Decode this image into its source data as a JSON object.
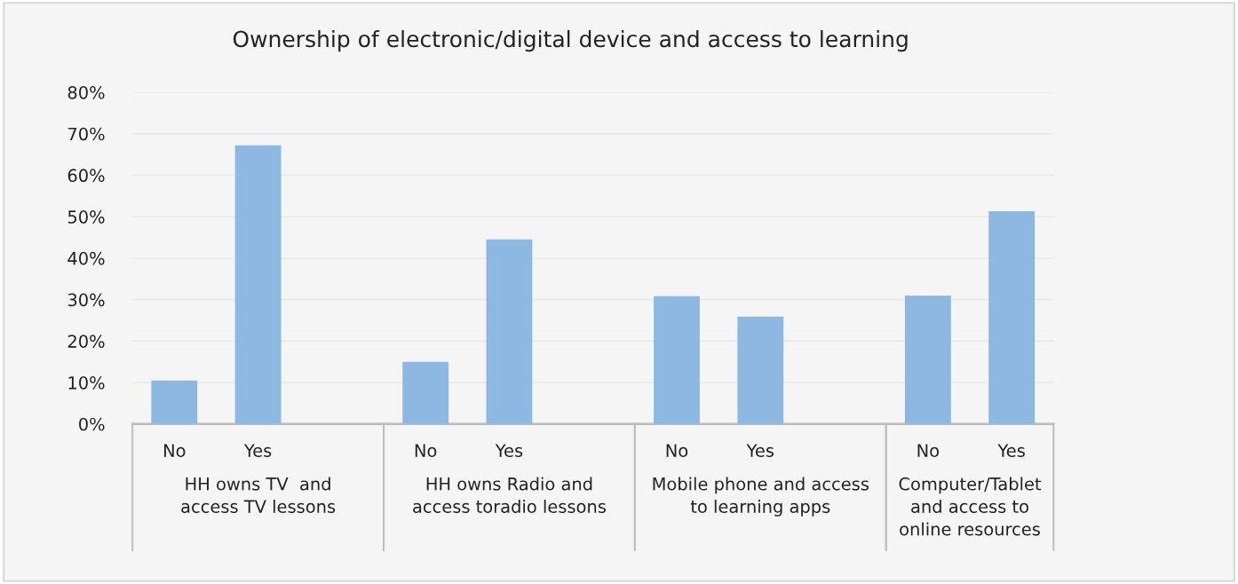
{
  "chart_data": {
    "type": "bar",
    "title": "Ownership of electronic/digital device and access to learning",
    "categories": [
      "No",
      "Yes",
      null,
      "No",
      "Yes",
      null,
      "No",
      "Yes",
      null,
      "No",
      "Yes"
    ],
    "values": [
      10.5,
      67.2,
      null,
      15.0,
      44.5,
      null,
      30.8,
      25.9,
      null,
      31.0,
      51.3
    ],
    "color": "#8db8e2",
    "annotations": [
      "HH owns TV  and\naccess TV lessons",
      "HH owns Radio and\naccess toradio lessons",
      "Mobile phone and access\nto learning apps",
      "Computer/Tablet\nand access to\nonline resources"
    ],
    "ylim": [
      0,
      80
    ],
    "yticks": [
      {
        "value": 0,
        "label": "0%"
      },
      {
        "value": 10,
        "label": "10%"
      },
      {
        "value": 20,
        "label": "20%"
      },
      {
        "value": 30,
        "label": "30%"
      },
      {
        "value": 40,
        "label": "40%"
      },
      {
        "value": 50,
        "label": "50%"
      },
      {
        "value": 60,
        "label": "60%"
      },
      {
        "value": 70,
        "label": "70%"
      },
      {
        "value": 80,
        "label": "80%"
      }
    ],
    "grid": "y"
  }
}
